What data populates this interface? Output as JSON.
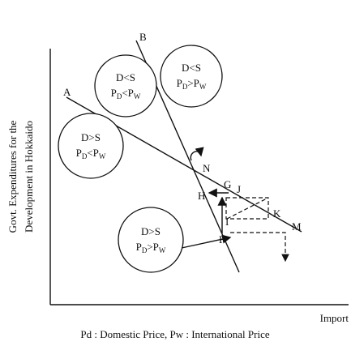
{
  "axes": {
    "y_label_lines": [
      "Govt. Expenditures for the",
      "Development in Hokkaido"
    ],
    "x_label": "Import"
  },
  "lines": [
    {
      "label": "A"
    },
    {
      "label": "B"
    }
  ],
  "points": {
    "N": "N",
    "G": "G",
    "J": "J",
    "H": "H",
    "I": "I",
    "K": "K",
    "F": "F",
    "M": "M"
  },
  "regions": [
    {
      "condition": "D<S",
      "p1": "P",
      "sub1": "D",
      "op": "<",
      "p2": "P",
      "sub2": "W"
    },
    {
      "condition": "D<S",
      "p1": "P",
      "sub1": "D",
      "op": ">",
      "p2": "P",
      "sub2": "W"
    },
    {
      "condition": "D>S",
      "p1": "P",
      "sub1": "D",
      "op": "<",
      "p2": "P",
      "sub2": "W"
    },
    {
      "condition": "D>S",
      "p1": "P",
      "sub1": "D",
      "op": ">",
      "p2": "P",
      "sub2": "W"
    }
  ],
  "caption": "Pd : Domestic Price,  Pw : International Price"
}
